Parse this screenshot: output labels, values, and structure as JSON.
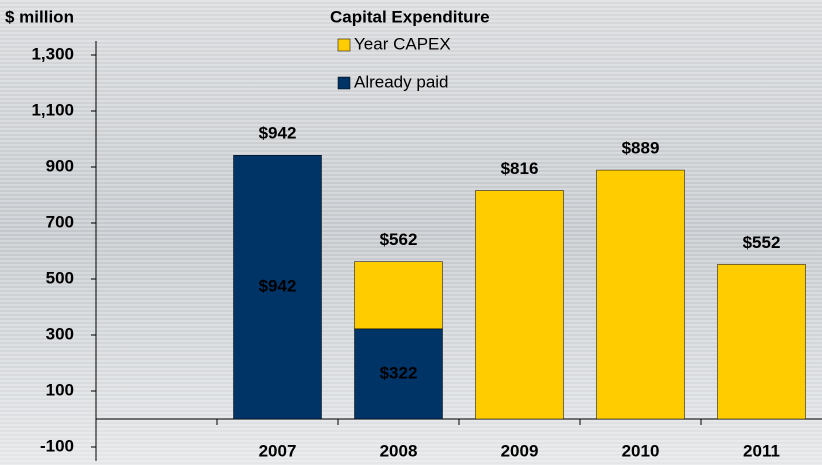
{
  "chart_data": {
    "type": "stacked-bar",
    "title": "Capital Expenditure",
    "y_label": "$ million",
    "categories": [
      null,
      "2007",
      "2008",
      "2009",
      "2010",
      "2011"
    ],
    "series": [
      {
        "name": "Year CAPEX",
        "color": "#ffcc00",
        "values": [
          null,
          null,
          240,
          816,
          889,
          552
        ]
      },
      {
        "name": "Already paid",
        "color": "#003366",
        "values": [
          null,
          942,
          322,
          null,
          null,
          null
        ],
        "value_labels": [
          null,
          "$942",
          "$322",
          null,
          null,
          null
        ],
        "label_color": "#ffcc00"
      }
    ],
    "totals": [
      null,
      942,
      562,
      816,
      889,
      552
    ],
    "total_labels": [
      null,
      "$942",
      "$562",
      "$816",
      "$889",
      "$552"
    ],
    "ylim": [
      -150,
      1350
    ],
    "yticks": [
      -100,
      100,
      300,
      500,
      700,
      900,
      {
        "value": 1100,
        "label": "1,100"
      },
      {
        "value": 1300,
        "label": "1,300"
      }
    ],
    "negative_tick_color": "#cc0000",
    "grid": false
  }
}
